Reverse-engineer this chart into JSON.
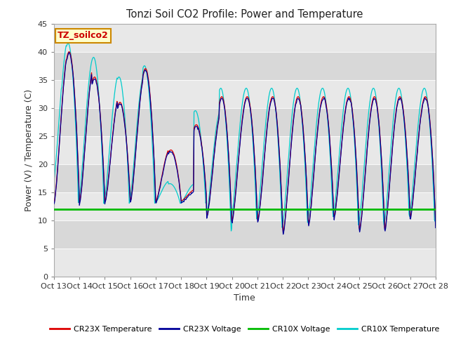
{
  "title": "Tonzi Soil CO2 Profile: Power and Temperature",
  "xlabel": "Time",
  "ylabel": "Power (V) / Temperature (C)",
  "ylim": [
    0,
    45
  ],
  "xlim": [
    0,
    15
  ],
  "background_color": "#ffffff",
  "plot_bg_color": "#e8e8e8",
  "band_light": "#e8e8e8",
  "band_dark": "#d8d8d8",
  "label_box_text": "TZ_soilco2",
  "label_box_color": "#ffffcc",
  "label_box_edge": "#cc8800",
  "cr23x_temp_color": "#dd0000",
  "cr23x_volt_color": "#000099",
  "cr10x_volt_color": "#00bb00",
  "cr10x_temp_color": "#00cccc",
  "xtick_labels": [
    "Oct 13",
    "Oct 14",
    "Oct 15",
    "Oct 16",
    "Oct 17",
    "Oct 18",
    "Oct 19",
    "Oct 20",
    "Oct 21",
    "Oct 22",
    "Oct 23",
    "Oct 24",
    "Oct 25",
    "Oct 26",
    "Oct 27",
    "Oct 28"
  ],
  "xtick_positions": [
    0,
    1,
    2,
    3,
    4,
    5,
    6,
    7,
    8,
    9,
    10,
    11,
    12,
    13,
    14,
    15
  ],
  "ytick_labels": [
    "0",
    "5",
    "10",
    "15",
    "20",
    "25",
    "30",
    "35",
    "40",
    "45"
  ],
  "ytick_positions": [
    0,
    5,
    10,
    15,
    20,
    25,
    30,
    35,
    40,
    45
  ],
  "legend_labels": [
    "CR23X Temperature",
    "CR23X Voltage",
    "CR10X Voltage",
    "CR10X Temperature"
  ],
  "legend_colors": [
    "#dd0000",
    "#000099",
    "#00bb00",
    "#00cccc"
  ],
  "cr10x_volt_value": 11.9
}
